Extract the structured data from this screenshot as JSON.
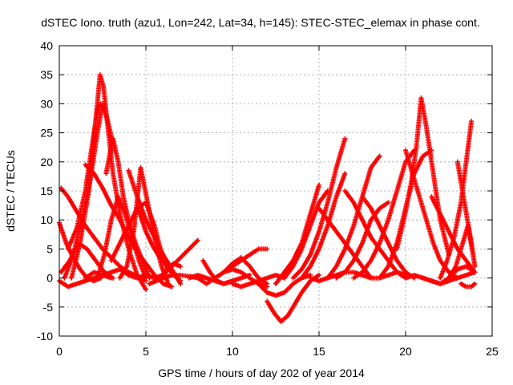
{
  "chart_data": {
    "type": "scatter",
    "title": "dSTEC Iono. truth (azu1, Lon=242, Lat=34, h=145): STEC-STEC_elemax in phase cont.",
    "xlabel": "GPS time / hours of day 202 of year 2014",
    "ylabel": "dSTEC  / TECUs",
    "xlim": [
      0,
      25
    ],
    "ylim": [
      -10,
      40
    ],
    "xticks": [
      0,
      5,
      10,
      15,
      20,
      25
    ],
    "yticks": [
      -10,
      -5,
      0,
      5,
      10,
      15,
      20,
      25,
      30,
      35,
      40
    ],
    "grid": true,
    "marker": "+",
    "color": "#ff0000",
    "series": [
      {
        "x": [
          0,
          0.5,
          1,
          1.5,
          2,
          2.5,
          3
        ],
        "y": [
          -0.5,
          -1.5,
          -1,
          -0.5,
          0,
          0.5,
          0
        ]
      },
      {
        "x": [
          0,
          0.4,
          0.8,
          1.2,
          1.6,
          2.0,
          2.4
        ],
        "y": [
          9.5,
          6,
          3.5,
          1.5,
          0,
          -0.5,
          0
        ]
      },
      {
        "x": [
          0.1,
          0.5,
          1,
          1.5,
          2,
          2.5,
          3,
          3.5,
          4,
          4.5,
          5
        ],
        "y": [
          15.5,
          14,
          11.5,
          9,
          7,
          5,
          3.5,
          2,
          1,
          0.3,
          -0.5
        ]
      },
      {
        "x": [
          0.1,
          0.6,
          1.1,
          1.6,
          2.1,
          2.6,
          3.1
        ],
        "y": [
          1,
          3,
          6,
          5,
          3,
          1,
          0
        ]
      },
      {
        "x": [
          0.3,
          0.8,
          1.3,
          1.8,
          2.2,
          2.5,
          2.8,
          3.2
        ],
        "y": [
          0,
          4,
          10,
          17,
          25,
          30,
          27,
          22
        ]
      },
      {
        "x": [
          0.5,
          1,
          1.5,
          2,
          2.2,
          2.4
        ],
        "y": [
          5,
          8.5,
          15,
          25,
          29,
          30
        ]
      },
      {
        "x": [
          0.7,
          1.2,
          1.7,
          2.1,
          2.35,
          2.55,
          2.8,
          3.1,
          3.5,
          4.0,
          4.5,
          5.0
        ],
        "y": [
          0,
          6,
          15,
          27,
          35,
          33,
          26,
          18,
          11,
          5,
          0.5,
          -2
        ]
      },
      {
        "x": [
          1.5,
          2,
          2.5,
          3,
          3.5,
          4,
          4.5,
          5,
          5.5
        ],
        "y": [
          0,
          1,
          0.5,
          1,
          1.5,
          0.5,
          0,
          0.5,
          0
        ]
      },
      {
        "x": [
          1.5,
          2.0,
          2.5,
          3.0,
          3.5,
          4.0,
          4.5,
          5.0,
          5.5,
          6.0,
          6.5
        ],
        "y": [
          19.5,
          18,
          15.5,
          12.5,
          10,
          7,
          4.5,
          2.5,
          0.5,
          -1,
          -1.5
        ]
      },
      {
        "x": [
          2.2,
          2.6,
          3.0,
          3.4,
          3.8,
          4.2,
          4.6,
          5.0
        ],
        "y": [
          0,
          4,
          10,
          14,
          11,
          7,
          3,
          0
        ]
      },
      {
        "x": [
          2.7,
          3.1,
          3.4,
          3.7,
          4.0,
          4.4,
          4.8,
          5.2
        ],
        "y": [
          18,
          24,
          20,
          14,
          10,
          6,
          3,
          0
        ]
      },
      {
        "x": [
          3,
          3.5,
          4,
          4.5,
          5,
          5.5,
          6
        ],
        "y": [
          3,
          6,
          9,
          12,
          13,
          9,
          3
        ]
      },
      {
        "x": [
          3.5,
          3.9,
          4.3,
          4.7,
          5.1,
          5.5,
          5.9,
          6.3
        ],
        "y": [
          0,
          2,
          8,
          19,
          13,
          7,
          2,
          -1
        ]
      },
      {
        "x": [
          4.0,
          4.5,
          5.0,
          5.5,
          6.0,
          6.5,
          7.0
        ],
        "y": [
          18.5,
          14,
          10,
          7,
          4,
          1.5,
          -1
        ]
      },
      {
        "x": [
          4.6,
          5.0,
          5.4,
          5.8,
          6.2,
          6.6,
          7.0
        ],
        "y": [
          11.5,
          8,
          5.5,
          3.5,
          2,
          0.5,
          -0.5
        ]
      },
      {
        "x": [
          5.2,
          5.6,
          6.0,
          6.5,
          7.0,
          7.5,
          8.0
        ],
        "y": [
          -1,
          -0.5,
          0,
          0.5,
          0.5,
          0.3,
          0
        ]
      },
      {
        "x": [
          5.5,
          6.0,
          6.5,
          7.0,
          7.5,
          8.0
        ],
        "y": [
          0,
          0.5,
          2,
          3.5,
          5,
          6.5
        ]
      },
      {
        "x": [
          5.8,
          6.2,
          6.6,
          7.0
        ],
        "y": [
          0,
          1.5,
          2.5,
          2
        ]
      },
      {
        "x": [
          7.5,
          8,
          8.5,
          9,
          9.5,
          10,
          10.5,
          11
        ],
        "y": [
          0,
          0.5,
          0,
          -0.5,
          -1,
          -0.5,
          0,
          0.5
        ]
      },
      {
        "x": [
          8,
          8.5,
          9,
          9.5,
          10,
          10.5,
          11,
          11.5,
          12
        ],
        "y": [
          0,
          -1,
          0,
          1,
          2,
          3,
          4,
          5,
          5
        ]
      },
      {
        "x": [
          8.3,
          8.7,
          9.1,
          9.5,
          10.0
        ],
        "y": [
          3,
          1,
          -0.5,
          -1,
          -0.5
        ]
      },
      {
        "x": [
          9,
          9.5,
          10,
          10.5,
          11,
          11.5,
          12
        ],
        "y": [
          0,
          1,
          1.5,
          1,
          0,
          -1,
          -1.5
        ]
      },
      {
        "x": [
          9.5,
          10,
          10.5,
          11,
          11.5,
          12
        ],
        "y": [
          1,
          2.5,
          3.5,
          2,
          0,
          -1
        ]
      },
      {
        "x": [
          10,
          10.5,
          11,
          11.5,
          12,
          12.5,
          13
        ],
        "y": [
          -1,
          -1.5,
          -1,
          -0.5,
          0,
          0.5,
          0
        ]
      },
      {
        "x": [
          11.5,
          12,
          12.5,
          13,
          13.5,
          14,
          14.5
        ],
        "y": [
          -1,
          -2.5,
          -3,
          -2.5,
          -1,
          0,
          0.5
        ]
      },
      {
        "x": [
          12.0,
          12.4,
          12.8,
          13.2,
          13.6,
          14.0,
          14.5,
          15.0
        ],
        "y": [
          -4,
          -6,
          -7.5,
          -6.5,
          -4.5,
          -2.5,
          -0.5,
          0.5
        ]
      },
      {
        "x": [
          12.5,
          13,
          13.5,
          14,
          14.5,
          15
        ],
        "y": [
          -1,
          1,
          3,
          6,
          11,
          16
        ]
      },
      {
        "x": [
          13,
          13.5,
          14,
          14.5,
          15,
          15.5
        ],
        "y": [
          0,
          2,
          5,
          9,
          13,
          15
        ]
      },
      {
        "x": [
          13.5,
          14,
          14.5,
          15,
          15.5,
          16,
          16.5
        ],
        "y": [
          0,
          1.5,
          4,
          8,
          13,
          19,
          24
        ]
      },
      {
        "x": [
          14,
          14.5,
          15,
          15.5,
          16,
          16.5
        ],
        "y": [
          0,
          2,
          5,
          9,
          14,
          18
        ]
      },
      {
        "x": [
          14.5,
          15,
          15.5,
          16,
          16.5,
          17,
          17.5,
          18,
          18.5,
          19,
          19.5,
          20
        ],
        "y": [
          0,
          -0.5,
          0,
          0.5,
          1,
          1,
          0.5,
          0,
          0,
          0.5,
          1,
          0.5
        ]
      },
      {
        "x": [
          15,
          15.5,
          16,
          16.5,
          17,
          17.5,
          18
        ],
        "y": [
          12,
          10,
          8,
          6,
          4,
          2,
          0
        ]
      },
      {
        "x": [
          15.5,
          16,
          16.5,
          17,
          17.5,
          18,
          18.5
        ],
        "y": [
          0,
          2,
          5,
          9,
          14,
          19,
          21
        ]
      },
      {
        "x": [
          16,
          16.5,
          17,
          17.5,
          18,
          18.5,
          19
        ],
        "y": [
          0,
          1,
          3,
          6,
          10,
          12,
          13
        ]
      },
      {
        "x": [
          16.5,
          17,
          17.5,
          18,
          18.5,
          19,
          19.5,
          20
        ],
        "y": [
          15,
          13,
          10,
          7,
          5,
          3,
          1,
          0
        ]
      },
      {
        "x": [
          17,
          17.5,
          18,
          18.5,
          19,
          19.5,
          20,
          20.5
        ],
        "y": [
          0,
          1,
          3,
          6,
          10,
          15,
          20,
          22
        ]
      },
      {
        "x": [
          17.5,
          18,
          18.5,
          19,
          19.5,
          20,
          20.5
        ],
        "y": [
          14,
          12,
          9,
          6,
          3,
          1,
          0
        ]
      },
      {
        "x": [
          18.5,
          19,
          19.5,
          20,
          20.5,
          21,
          21.5
        ],
        "y": [
          0,
          2,
          6,
          12,
          18,
          21,
          22
        ]
      },
      {
        "x": [
          19.5,
          19.9,
          20.3,
          20.6,
          20.9,
          21.2,
          21.6,
          22.0,
          22.5
        ],
        "y": [
          5,
          10,
          16,
          22,
          31,
          26,
          18,
          10,
          4
        ]
      },
      {
        "x": [
          20.0,
          20.4,
          20.8,
          21.2,
          21.6,
          22.0,
          22.5,
          23.0
        ],
        "y": [
          22,
          18,
          14,
          10,
          6,
          3,
          1,
          0
        ]
      },
      {
        "x": [
          20,
          20.5,
          21,
          21.5,
          22,
          22.5,
          23,
          23.5,
          24
        ],
        "y": [
          0,
          0.5,
          0,
          -0.5,
          -1,
          -0.5,
          0,
          0.5,
          1
        ]
      },
      {
        "x": [
          21,
          21.5,
          22,
          22.5,
          23,
          23.5,
          24
        ],
        "y": [
          0,
          -0.5,
          -1,
          0,
          1.5,
          2,
          1
        ]
      },
      {
        "x": [
          21.5,
          22,
          22.5,
          23,
          23.5,
          24
        ],
        "y": [
          14,
          11,
          8,
          5,
          3,
          1
        ]
      },
      {
        "x": [
          22,
          22.4,
          22.8,
          23.2,
          23.5,
          23.8
        ],
        "y": [
          0,
          3,
          7,
          13,
          20,
          27
        ]
      },
      {
        "x": [
          22.5,
          22.9,
          23.3,
          23.6,
          23.9
        ],
        "y": [
          0,
          2,
          6,
          9,
          4
        ]
      },
      {
        "x": [
          23.0,
          23.4,
          23.8,
          24.0
        ],
        "y": [
          20,
          13,
          6,
          2
        ]
      },
      {
        "x": [
          23.2,
          23.5,
          23.8,
          24.0
        ],
        "y": [
          -1,
          -1.5,
          -1.5,
          -1
        ]
      }
    ]
  }
}
